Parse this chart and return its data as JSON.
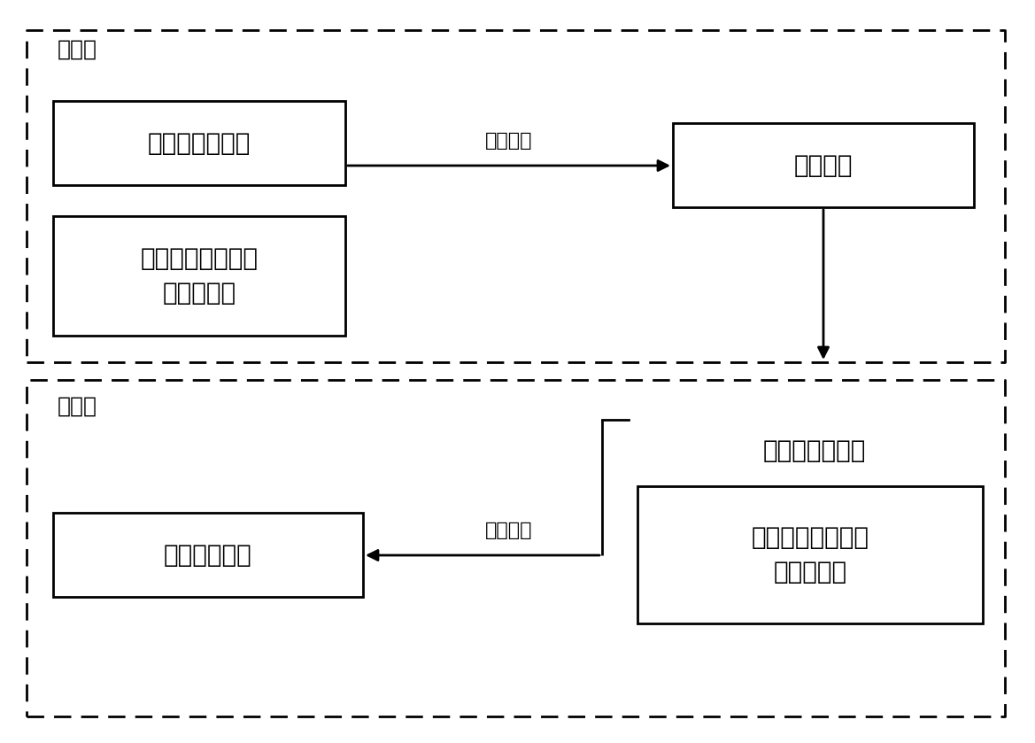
{
  "background_color": "#ffffff",
  "fig_width": 11.69,
  "fig_height": 8.39,
  "dpi": 100,
  "top_box_label": "标定步",
  "bottom_box_label": "定位步",
  "box1_text": "剪切层合板模型",
  "box2_text": "撞击点已知情况下\n的响应信号",
  "box3_text": "材料参数",
  "box4_text": "剪切层合板模型",
  "box5_text": "撞击点未知情况下\n的响应信号",
  "box6_text": "撞击位置坐标",
  "arrow1_label": "遗传算法",
  "arrow2_label": "遗传算法",
  "font_size_label": 18,
  "font_size_box": 20,
  "font_size_arrow": 16,
  "box_edge_color": "#000000",
  "arrow_color": "#000000",
  "outer_box_color": "#000000",
  "text_color": "#000000"
}
